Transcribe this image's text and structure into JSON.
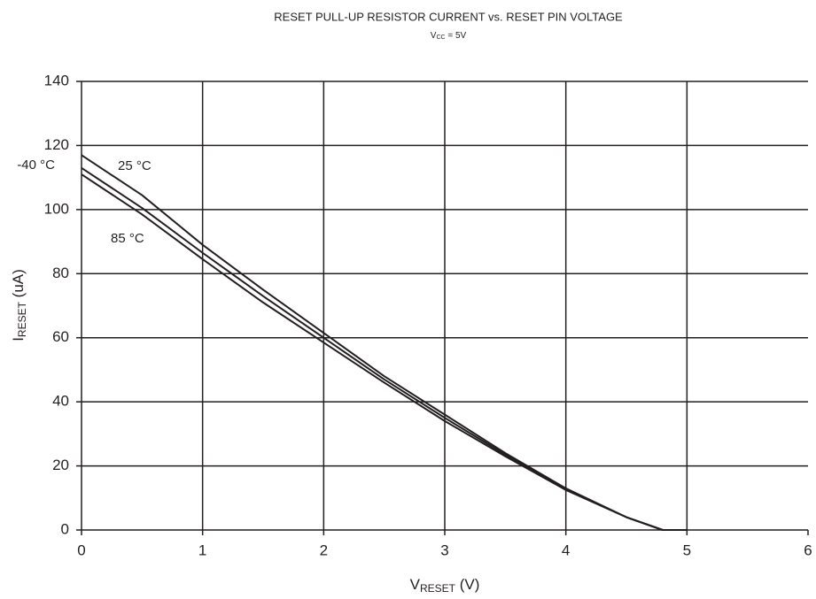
{
  "chart_data": {
    "type": "line",
    "title": "RESET PULL-UP RESISTOR CURRENT vs. RESET PIN VOLTAGE",
    "subtitle": {
      "main": "V",
      "sub": "CC",
      "rest": " = 5V"
    },
    "x_label": {
      "main": "V",
      "sub": "RESET",
      "rest": " (V)"
    },
    "y_label": {
      "main": "I",
      "sub": "RESET",
      "rest": " (uA)"
    },
    "x": [
      0,
      0.5,
      1,
      1.5,
      2,
      2.5,
      3,
      3.5,
      4,
      4.5,
      4.8,
      5
    ],
    "series": [
      {
        "name": "-40 °C",
        "color": "#231f20",
        "values": [
          117,
          104.5,
          89,
          75,
          61.5,
          48,
          36,
          24,
          13,
          4,
          0,
          0
        ]
      },
      {
        "name": "25 °C",
        "color": "#231f20",
        "values": [
          113,
          100.5,
          86.5,
          73,
          60,
          47,
          35,
          23.5,
          12.5,
          4,
          0,
          0
        ]
      },
      {
        "name": "85 °C",
        "color": "#231f20",
        "values": [
          111,
          98.5,
          84.5,
          71,
          58.5,
          46,
          34,
          23,
          12.5,
          4,
          0,
          0
        ]
      }
    ],
    "xlim": [
      0,
      6
    ],
    "xticks": [
      0,
      1,
      2,
      3,
      4,
      5,
      6
    ],
    "ylim": [
      0,
      140
    ],
    "yticks": [
      0,
      20,
      40,
      60,
      80,
      100,
      120,
      140
    ],
    "grid": true
  }
}
